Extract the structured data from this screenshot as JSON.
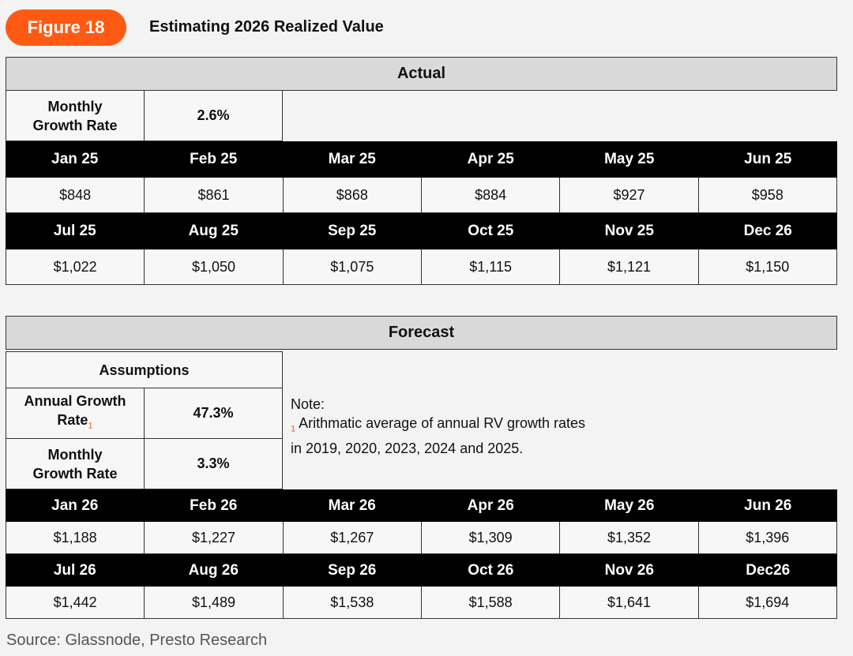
{
  "figure": {
    "badge": "Figure 18",
    "title": "Estimating 2026 Realized Value"
  },
  "actual": {
    "header": "Actual",
    "monthly_growth_label": "Monthly Growth Rate",
    "monthly_growth_value": "2.6%",
    "months_row1": [
      "Jan 25",
      "Feb 25",
      "Mar 25",
      "Apr 25",
      "May 25",
      "Jun 25"
    ],
    "values_row1": [
      "$848",
      "$861",
      "$868",
      "$884",
      "$927",
      "$958"
    ],
    "months_row2": [
      "Jul 25",
      "Aug 25",
      "Sep 25",
      "Oct 25",
      "Nov 25",
      "Dec 26"
    ],
    "values_row2": [
      "$1,022",
      "$1,050",
      "$1,075",
      "$1,115",
      "$1,121",
      "$1,150"
    ]
  },
  "forecast": {
    "header": "Forecast",
    "assumptions_label": "Assumptions",
    "annual_growth_label": "Annual Growth Rate",
    "annual_growth_marker": "1",
    "annual_growth_value": "47.3%",
    "monthly_growth_label": "Monthly Growth Rate",
    "monthly_growth_value": "3.3%",
    "note_title": "Note:",
    "note_marker": "1",
    "note_line1": "Arithmatic average of annual RV growth rates",
    "note_line2": "in 2019, 2020, 2023, 2024 and 2025.",
    "months_row1": [
      "Jan 26",
      "Feb 26",
      "Mar 26",
      "Apr 26",
      "May 26",
      "Jun 26"
    ],
    "values_row1": [
      "$1,188",
      "$1,227",
      "$1,267",
      "$1,309",
      "$1,352",
      "$1,396"
    ],
    "months_row2": [
      "Jul 26",
      "Aug 26",
      "Sep 26",
      "Oct 26",
      "Nov 26",
      "Dec26"
    ],
    "values_row2": [
      "$1,442",
      "$1,489",
      "$1,538",
      "$1,588",
      "$1,641",
      "$1,694"
    ]
  },
  "source": "Source: Glassnode, Presto Research",
  "colors": {
    "accent": "#ff5a14",
    "header_bg": "#d9d9d9",
    "month_bar": "#000000"
  }
}
